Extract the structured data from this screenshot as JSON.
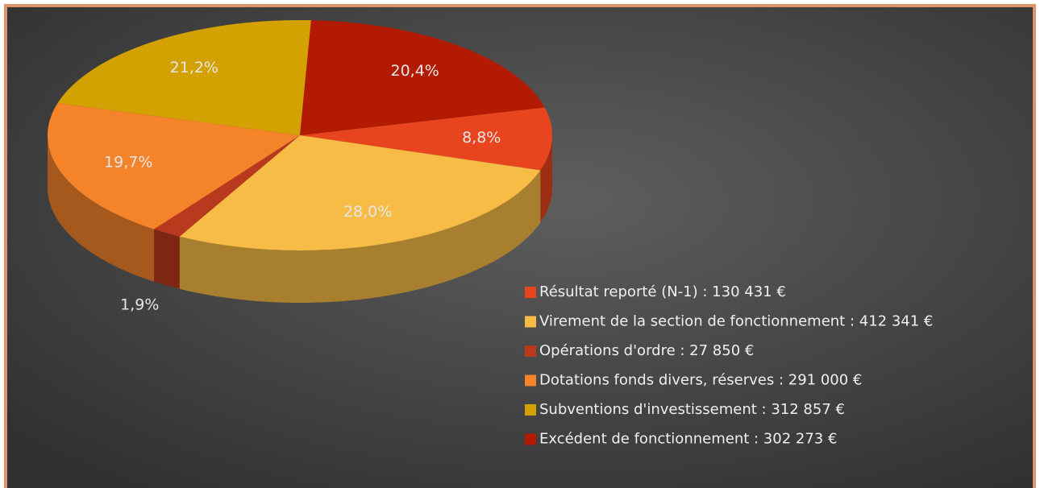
{
  "chart_data": {
    "type": "pie",
    "categories": [
      "Résultat reporté (N-1) : 130 431 €",
      "Virement de la section de fonctionnement : 412 341 €",
      "Opérations d'ordre : 27 850 €",
      "Dotations fonds divers, réserves : 291 000 €",
      "Subventions d'investissement : 312 857 €",
      "Excédent de fonctionnement : 302 273 €"
    ],
    "values": [
      8.8,
      28.0,
      1.9,
      19.7,
      21.2,
      20.4
    ],
    "value_labels": [
      "8,8%",
      "28,0%",
      "1,9%",
      "19,7%",
      "21,2%",
      "20,4%"
    ],
    "colors": [
      "#e8441e",
      "#f7bc45",
      "#b9391e",
      "#f5832a",
      "#d4a102",
      "#b31a02"
    ],
    "legend": "right"
  }
}
